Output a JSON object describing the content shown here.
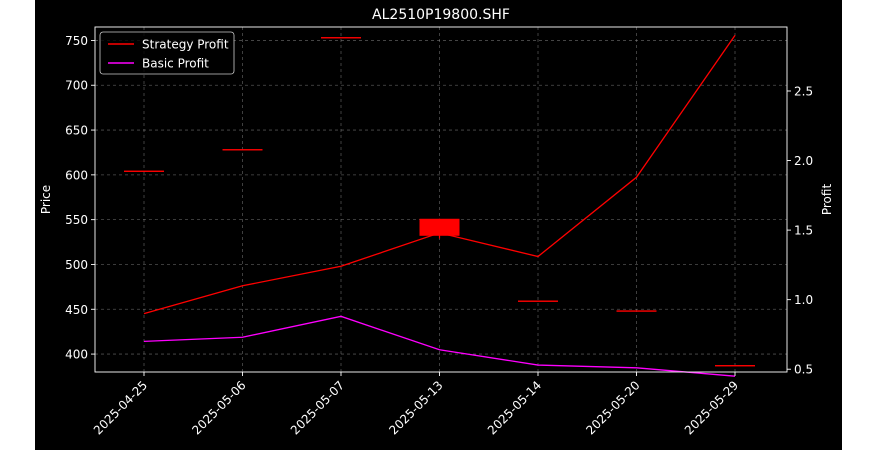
{
  "chart_data": {
    "type": "line",
    "title": "AL2510P19800.SHF",
    "xlabel": "",
    "ylabel": "Price",
    "y2label": "Profit",
    "categories": [
      "2025-04-25",
      "2025-05-06",
      "2025-05-07",
      "2025-05-13",
      "2025-05-14",
      "2025-05-20",
      "2025-05-29"
    ],
    "ylim": [
      380,
      765
    ],
    "y2lim": [
      0.48,
      2.96
    ],
    "yticks": [
      400,
      450,
      500,
      550,
      600,
      650,
      700,
      750
    ],
    "y2ticks": [
      0.5,
      1.0,
      1.5,
      2.0,
      2.5
    ],
    "grid": true,
    "legend_position": "top-left",
    "candles": [
      {
        "x": "2025-04-25",
        "open": 604,
        "close": 604,
        "high": 604,
        "low": 604
      },
      {
        "x": "2025-05-06",
        "open": 628,
        "close": 628,
        "high": 628,
        "low": 628
      },
      {
        "x": "2025-05-07",
        "open": 753,
        "close": 753,
        "high": 753,
        "low": 753
      },
      {
        "x": "2025-05-13",
        "open": 551,
        "close": 532,
        "high": 551,
        "low": 529
      },
      {
        "x": "2025-05-14",
        "open": 459,
        "close": 459,
        "high": 459,
        "low": 459
      },
      {
        "x": "2025-05-20",
        "open": 448,
        "close": 448,
        "high": 448,
        "low": 448
      },
      {
        "x": "2025-05-29",
        "open": 387,
        "close": 387,
        "high": 387,
        "low": 387
      }
    ],
    "series": [
      {
        "name": "Strategy Profit",
        "color": "#ff0000",
        "axis": "right",
        "values": [
          0.9,
          1.1,
          1.24,
          1.48,
          1.31,
          1.88,
          2.9
        ]
      },
      {
        "name": "Basic Profit",
        "color": "#ff00ff",
        "axis": "right",
        "values": [
          0.7,
          0.73,
          0.88,
          0.64,
          0.53,
          0.51,
          0.45
        ]
      }
    ],
    "candle_color": "#ff0000"
  }
}
